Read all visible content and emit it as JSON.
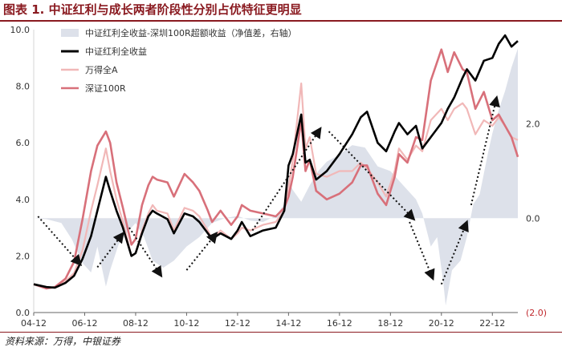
{
  "header": {
    "title": "图表 1. 中证红利与成长两者阶段性分别占优特征更明显"
  },
  "footer": {
    "source": "资料来源：万得，中银证券"
  },
  "chart_data": {
    "type": "line",
    "title": "图表 1. 中证红利与成长两者阶段性分别占优特征更明显",
    "x_ticks": [
      "04-12",
      "06-12",
      "08-12",
      "10-12",
      "12-12",
      "14-12",
      "16-12",
      "18-12",
      "20-12",
      "22-12"
    ],
    "x_range": [
      "2004-12",
      "2023-12"
    ],
    "y_left": {
      "range": [
        0,
        10
      ],
      "ticks": [
        "0.0",
        "2.0",
        "4.0",
        "6.0",
        "8.0",
        "10.0"
      ]
    },
    "y_right": {
      "range": [
        -2,
        4
      ],
      "ticks": [
        "(2.0)",
        "0.0",
        "2.0"
      ]
    },
    "legend_position": "top-left",
    "series": [
      {
        "name": "中证红利全收益-深圳100R超额收益（净值差，右轴）",
        "type": "area",
        "axis": "right",
        "color": "#dde1ea",
        "points": [
          [
            "2004-12",
            0.0
          ],
          [
            "2005-06",
            -0.02
          ],
          [
            "2006-01",
            -0.1
          ],
          [
            "2006-06",
            -0.45
          ],
          [
            "2006-11",
            -0.95
          ],
          [
            "2007-03",
            -1.15
          ],
          [
            "2007-06",
            -0.6
          ],
          [
            "2007-10",
            -1.45
          ],
          [
            "2007-12",
            -1.1
          ],
          [
            "2008-04",
            -0.55
          ],
          [
            "2008-08",
            -0.3
          ],
          [
            "2008-12",
            -0.1
          ],
          [
            "2009-04",
            -0.4
          ],
          [
            "2009-08",
            -0.9
          ],
          [
            "2010-01",
            -1.05
          ],
          [
            "2010-06",
            -0.9
          ],
          [
            "2010-12",
            -0.6
          ],
          [
            "2011-06",
            -0.4
          ],
          [
            "2011-12",
            -0.1
          ],
          [
            "2012-06",
            0.0
          ],
          [
            "2012-12",
            0.05
          ],
          [
            "2013-06",
            -0.05
          ],
          [
            "2013-12",
            -0.08
          ],
          [
            "2014-06",
            0.05
          ],
          [
            "2014-10",
            0.3
          ],
          [
            "2014-12",
            0.8
          ],
          [
            "2015-02",
            0.6
          ],
          [
            "2015-06",
            0.35
          ],
          [
            "2015-10",
            0.7
          ],
          [
            "2016-02",
            1.0
          ],
          [
            "2016-06",
            1.2
          ],
          [
            "2016-12",
            1.35
          ],
          [
            "2017-06",
            1.55
          ],
          [
            "2017-12",
            1.5
          ],
          [
            "2018-06",
            1.1
          ],
          [
            "2018-12",
            1.0
          ],
          [
            "2019-06",
            0.7
          ],
          [
            "2019-12",
            0.4
          ],
          [
            "2020-03",
            0.1
          ],
          [
            "2020-07",
            -0.6
          ],
          [
            "2020-10",
            -0.4
          ],
          [
            "2021-01",
            -1.4
          ],
          [
            "2021-02",
            -1.85
          ],
          [
            "2021-05",
            -1.1
          ],
          [
            "2021-09",
            -0.9
          ],
          [
            "2021-12",
            -0.4
          ],
          [
            "2022-03",
            0.3
          ],
          [
            "2022-06",
            0.5
          ],
          [
            "2022-10",
            1.4
          ],
          [
            "2022-12",
            1.8
          ],
          [
            "2023-03",
            2.3
          ],
          [
            "2023-06",
            2.7
          ],
          [
            "2023-09",
            3.2
          ],
          [
            "2023-12",
            3.6
          ]
        ]
      },
      {
        "name": "中证红利全收益",
        "type": "line",
        "axis": "left",
        "color": "#000000",
        "points": [
          [
            "2004-12",
            1.0
          ],
          [
            "2005-06",
            0.9
          ],
          [
            "2005-10",
            0.88
          ],
          [
            "2006-03",
            1.05
          ],
          [
            "2006-07",
            1.3
          ],
          [
            "2006-11",
            1.9
          ],
          [
            "2007-03",
            2.7
          ],
          [
            "2007-06",
            3.6
          ],
          [
            "2007-10",
            4.8
          ],
          [
            "2007-12",
            4.3
          ],
          [
            "2008-03",
            3.6
          ],
          [
            "2008-06",
            3.0
          ],
          [
            "2008-10",
            2.0
          ],
          [
            "2008-12",
            2.1
          ],
          [
            "2009-03",
            2.8
          ],
          [
            "2009-06",
            3.4
          ],
          [
            "2009-08",
            3.6
          ],
          [
            "2009-10",
            3.5
          ],
          [
            "2010-03",
            3.3
          ],
          [
            "2010-06",
            2.8
          ],
          [
            "2010-11",
            3.5
          ],
          [
            "2011-03",
            3.4
          ],
          [
            "2011-06",
            3.2
          ],
          [
            "2011-10",
            2.8
          ],
          [
            "2011-12",
            2.6
          ],
          [
            "2012-04",
            2.8
          ],
          [
            "2012-09",
            2.6
          ],
          [
            "2012-12",
            2.9
          ],
          [
            "2013-02",
            3.2
          ],
          [
            "2013-06",
            2.7
          ],
          [
            "2013-12",
            2.9
          ],
          [
            "2014-06",
            3.0
          ],
          [
            "2014-10",
            3.6
          ],
          [
            "2014-12",
            5.2
          ],
          [
            "2015-02",
            5.6
          ],
          [
            "2015-06",
            7.0
          ],
          [
            "2015-08",
            5.3
          ],
          [
            "2015-10",
            5.4
          ],
          [
            "2016-01",
            4.7
          ],
          [
            "2016-06",
            5.0
          ],
          [
            "2016-12",
            5.6
          ],
          [
            "2017-06",
            6.3
          ],
          [
            "2017-10",
            6.9
          ],
          [
            "2018-01",
            7.1
          ],
          [
            "2018-06",
            6.0
          ],
          [
            "2018-10",
            5.7
          ],
          [
            "2019-02",
            6.4
          ],
          [
            "2019-04",
            6.7
          ],
          [
            "2019-08",
            6.3
          ],
          [
            "2019-12",
            6.6
          ],
          [
            "2020-03",
            5.8
          ],
          [
            "2020-07",
            6.2
          ],
          [
            "2020-12",
            6.7
          ],
          [
            "2021-03",
            7.2
          ],
          [
            "2021-06",
            7.6
          ],
          [
            "2021-10",
            8.3
          ],
          [
            "2021-12",
            8.6
          ],
          [
            "2022-04",
            8.2
          ],
          [
            "2022-08",
            8.9
          ],
          [
            "2022-12",
            9.0
          ],
          [
            "2023-03",
            9.5
          ],
          [
            "2023-06",
            9.8
          ],
          [
            "2023-09",
            9.4
          ],
          [
            "2023-12",
            9.6
          ]
        ]
      },
      {
        "name": "万得全A",
        "type": "line",
        "axis": "left",
        "color": "#f1b8b8",
        "points": [
          [
            "2004-12",
            1.0
          ],
          [
            "2005-06",
            0.88
          ],
          [
            "2005-10",
            0.9
          ],
          [
            "2006-03",
            1.1
          ],
          [
            "2006-07",
            1.4
          ],
          [
            "2006-11",
            2.2
          ],
          [
            "2007-03",
            3.6
          ],
          [
            "2007-06",
            4.5
          ],
          [
            "2007-10",
            5.8
          ],
          [
            "2007-12",
            5.0
          ],
          [
            "2008-03",
            4.0
          ],
          [
            "2008-06",
            3.2
          ],
          [
            "2008-10",
            2.0
          ],
          [
            "2008-12",
            2.1
          ],
          [
            "2009-03",
            2.9
          ],
          [
            "2009-06",
            3.5
          ],
          [
            "2009-08",
            3.8
          ],
          [
            "2009-10",
            3.6
          ],
          [
            "2010-03",
            3.5
          ],
          [
            "2010-06",
            2.9
          ],
          [
            "2010-11",
            3.7
          ],
          [
            "2011-03",
            3.6
          ],
          [
            "2011-06",
            3.4
          ],
          [
            "2011-10",
            2.9
          ],
          [
            "2011-12",
            2.6
          ],
          [
            "2012-04",
            2.9
          ],
          [
            "2012-09",
            2.6
          ],
          [
            "2012-12",
            2.8
          ],
          [
            "2013-02",
            3.0
          ],
          [
            "2013-06",
            2.9
          ],
          [
            "2013-12",
            3.1
          ],
          [
            "2014-06",
            3.2
          ],
          [
            "2014-10",
            3.6
          ],
          [
            "2014-12",
            4.4
          ],
          [
            "2015-02",
            5.4
          ],
          [
            "2015-06",
            8.1
          ],
          [
            "2015-08",
            5.8
          ],
          [
            "2015-10",
            6.2
          ],
          [
            "2016-01",
            4.9
          ],
          [
            "2016-06",
            4.8
          ],
          [
            "2016-12",
            5.0
          ],
          [
            "2017-06",
            5.0
          ],
          [
            "2017-10",
            5.3
          ],
          [
            "2018-01",
            5.1
          ],
          [
            "2018-06",
            4.6
          ],
          [
            "2018-10",
            4.1
          ],
          [
            "2019-02",
            5.0
          ],
          [
            "2019-04",
            5.8
          ],
          [
            "2019-08",
            5.4
          ],
          [
            "2019-12",
            5.9
          ],
          [
            "2020-03",
            5.7
          ],
          [
            "2020-07",
            6.8
          ],
          [
            "2020-12",
            7.2
          ],
          [
            "2021-03",
            6.8
          ],
          [
            "2021-06",
            7.2
          ],
          [
            "2021-10",
            7.4
          ],
          [
            "2021-12",
            7.2
          ],
          [
            "2022-04",
            6.3
          ],
          [
            "2022-08",
            6.8
          ],
          [
            "2022-12",
            6.6
          ],
          [
            "2023-03",
            6.9
          ],
          [
            "2023-06",
            6.6
          ],
          [
            "2023-09",
            6.2
          ],
          [
            "2023-12",
            6.1
          ]
        ]
      },
      {
        "name": "深证100R",
        "type": "line",
        "axis": "left",
        "color": "#d8707a",
        "points": [
          [
            "2004-12",
            1.0
          ],
          [
            "2005-06",
            0.85
          ],
          [
            "2005-10",
            0.9
          ],
          [
            "2006-03",
            1.2
          ],
          [
            "2006-07",
            1.8
          ],
          [
            "2006-11",
            3.3
          ],
          [
            "2007-03",
            5.0
          ],
          [
            "2007-06",
            5.9
          ],
          [
            "2007-10",
            6.4
          ],
          [
            "2007-12",
            6.0
          ],
          [
            "2008-03",
            4.6
          ],
          [
            "2008-06",
            3.7
          ],
          [
            "2008-10",
            2.4
          ],
          [
            "2008-12",
            2.6
          ],
          [
            "2009-03",
            3.8
          ],
          [
            "2009-06",
            4.5
          ],
          [
            "2009-08",
            4.8
          ],
          [
            "2009-10",
            4.7
          ],
          [
            "2010-03",
            4.6
          ],
          [
            "2010-06",
            4.1
          ],
          [
            "2010-11",
            4.9
          ],
          [
            "2011-03",
            4.6
          ],
          [
            "2011-06",
            4.3
          ],
          [
            "2011-10",
            3.6
          ],
          [
            "2011-12",
            3.2
          ],
          [
            "2012-04",
            3.6
          ],
          [
            "2012-09",
            3.1
          ],
          [
            "2012-12",
            3.4
          ],
          [
            "2013-02",
            3.8
          ],
          [
            "2013-06",
            3.6
          ],
          [
            "2013-12",
            3.5
          ],
          [
            "2014-06",
            3.4
          ],
          [
            "2014-10",
            3.7
          ],
          [
            "2014-12",
            4.1
          ],
          [
            "2015-02",
            4.8
          ],
          [
            "2015-06",
            6.8
          ],
          [
            "2015-08",
            5.0
          ],
          [
            "2015-10",
            5.4
          ],
          [
            "2016-01",
            4.3
          ],
          [
            "2016-06",
            4.0
          ],
          [
            "2016-12",
            4.2
          ],
          [
            "2017-06",
            4.6
          ],
          [
            "2017-10",
            5.2
          ],
          [
            "2018-01",
            5.2
          ],
          [
            "2018-06",
            4.2
          ],
          [
            "2018-10",
            3.8
          ],
          [
            "2019-02",
            4.8
          ],
          [
            "2019-04",
            5.6
          ],
          [
            "2019-08",
            5.3
          ],
          [
            "2019-12",
            6.2
          ],
          [
            "2020-03",
            6.1
          ],
          [
            "2020-07",
            8.2
          ],
          [
            "2020-12",
            9.3
          ],
          [
            "2021-03",
            8.5
          ],
          [
            "2021-06",
            9.2
          ],
          [
            "2021-10",
            8.6
          ],
          [
            "2021-12",
            8.5
          ],
          [
            "2022-04",
            7.2
          ],
          [
            "2022-08",
            7.8
          ],
          [
            "2022-12",
            6.8
          ],
          [
            "2023-03",
            7.0
          ],
          [
            "2023-06",
            6.6
          ],
          [
            "2023-09",
            6.2
          ],
          [
            "2023-12",
            5.5
          ]
        ]
      }
    ],
    "annotations": {
      "style": "dotted-arrow",
      "color": "#111111",
      "arrows": [
        {
          "from": [
            "2005-02",
            3.4
          ],
          "to": [
            "2006-10",
            1.7
          ]
        },
        {
          "from": [
            "2007-06",
            1.6
          ],
          "to": [
            "2008-06",
            2.8
          ]
        },
        {
          "from": [
            "2008-09",
            3.0
          ],
          "to": [
            "2009-12",
            1.3
          ]
        },
        {
          "from": [
            "2010-12",
            1.5
          ],
          "to": [
            "2012-02",
            2.8
          ]
        },
        {
          "from": [
            "2013-07",
            2.9
          ],
          "to": [
            "2016-03",
            6.5
          ]
        },
        {
          "from": [
            "2016-07",
            6.4
          ],
          "to": [
            "2019-11",
            3.3
          ]
        },
        {
          "from": [
            "2019-09",
            3.2
          ],
          "to": [
            "2020-08",
            1.2
          ]
        },
        {
          "from": [
            "2020-12",
            1.0
          ],
          "to": [
            "2021-12",
            3.2
          ]
        },
        {
          "from": [
            "2022-02",
            3.8
          ],
          "to": [
            "2023-02",
            7.6
          ]
        }
      ]
    }
  }
}
